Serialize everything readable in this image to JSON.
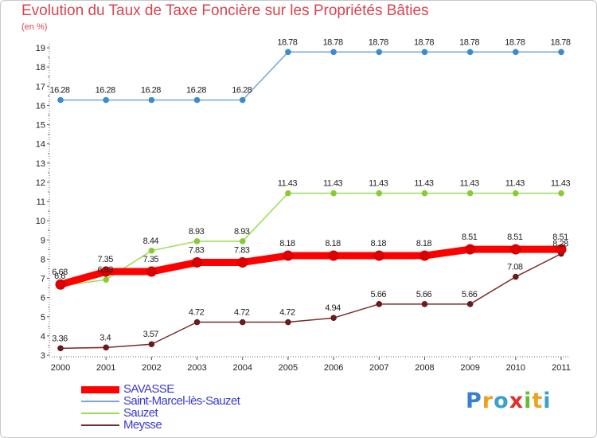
{
  "header": {
    "title": "Evolution du Taux de Taxe Foncière sur les Propriétés Bâties",
    "unit": "(en %)"
  },
  "logo": {
    "letters": [
      "P",
      "r",
      "o",
      "x",
      "i",
      "t",
      "i"
    ]
  },
  "chart_data": {
    "type": "line",
    "title": "Evolution du Taux de Taxe Foncière sur les Propriétés Bâties",
    "ylabel": "(en %)",
    "xlabel": "",
    "categories": [
      "2000",
      "2001",
      "2002",
      "2003",
      "2004",
      "2005",
      "2006",
      "2007",
      "2008",
      "2009",
      "2010",
      "2011"
    ],
    "yticks": [
      3,
      4,
      5,
      6,
      7,
      8,
      9,
      10,
      11,
      12,
      13,
      14,
      15,
      16,
      17,
      18,
      19
    ],
    "ylim": [
      3,
      19
    ],
    "grid": false,
    "legend_position": "bottom-left",
    "series": [
      {
        "name": "SAVASSE",
        "color": "#ff0000",
        "values": [
          6.68,
          7.35,
          7.35,
          7.83,
          7.83,
          8.18,
          8.18,
          8.18,
          8.18,
          8.51,
          8.51,
          8.51
        ],
        "labels": [
          "6.68",
          "7.35",
          "7.35",
          "7.83",
          "7.83",
          "8.18",
          "8.18",
          "8.18",
          "8.18",
          "8.51",
          "8.51",
          "8.51"
        ]
      },
      {
        "name": "Saint-Marcel-lès-Sauzet",
        "color": "#7aa6d6",
        "values": [
          16.28,
          16.28,
          16.28,
          16.28,
          16.28,
          18.78,
          18.78,
          18.78,
          18.78,
          18.78,
          18.78,
          18.78
        ],
        "labels": [
          "16.28",
          "16.28",
          "16.28",
          "16.28",
          "16.28",
          "18.78",
          "18.78",
          "18.78",
          "18.78",
          "18.78",
          "18.78",
          "18.78"
        ]
      },
      {
        "name": "Sauzet",
        "color": "#99dd55",
        "values": [
          6.6,
          6.93,
          8.44,
          8.93,
          8.93,
          11.43,
          11.43,
          11.43,
          11.43,
          11.43,
          11.43,
          11.43
        ],
        "labels": [
          "6.6",
          "6.93",
          "8.44",
          "8.93",
          "8.93",
          "11.43",
          "11.43",
          "11.43",
          "11.43",
          "11.43",
          "11.43",
          "11.43"
        ]
      },
      {
        "name": "Meysse",
        "color": "#7a2a2a",
        "values": [
          3.36,
          3.4,
          3.57,
          4.72,
          4.72,
          4.72,
          4.94,
          5.66,
          5.66,
          5.66,
          7.08,
          8.28
        ],
        "labels": [
          "3.36",
          "3.4",
          "3.57",
          "4.72",
          "4.72",
          "4.72",
          "4.94",
          "5.66",
          "5.66",
          "5.66",
          "7.08",
          "8.28"
        ]
      }
    ]
  }
}
